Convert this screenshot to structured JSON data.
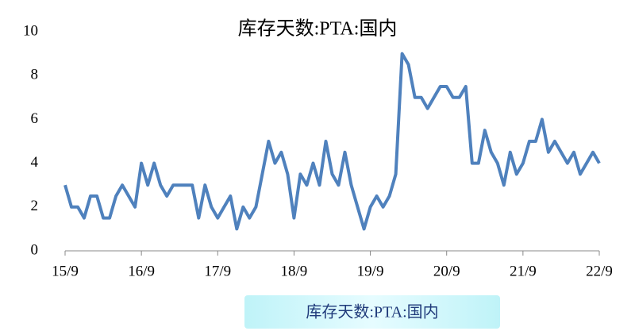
{
  "chart_data": {
    "type": "line",
    "title": "库存天数:PTA:国内",
    "categories": [
      "15/9",
      null,
      null,
      null,
      null,
      null,
      null,
      null,
      null,
      null,
      null,
      null,
      "16/9",
      null,
      null,
      null,
      null,
      null,
      null,
      null,
      null,
      null,
      null,
      null,
      "17/9",
      null,
      null,
      null,
      null,
      null,
      null,
      null,
      null,
      null,
      null,
      null,
      "18/9",
      null,
      null,
      null,
      null,
      null,
      null,
      null,
      null,
      null,
      null,
      null,
      "19/9",
      null,
      null,
      null,
      null,
      null,
      null,
      null,
      null,
      null,
      null,
      null,
      "20/9",
      null,
      null,
      null,
      null,
      null,
      null,
      null,
      null,
      null,
      null,
      null,
      "21/9",
      null,
      null,
      null,
      null,
      null,
      null,
      null,
      null,
      null,
      null,
      null,
      "22/9"
    ],
    "series": [
      {
        "name": "库存天数:PTA:国内",
        "color": "#4f81bd",
        "values": [
          3,
          2,
          2,
          1.5,
          2.5,
          2.5,
          1.5,
          1.5,
          2.5,
          3,
          2.5,
          2,
          4,
          3,
          4,
          3,
          2.5,
          3,
          3,
          3,
          3,
          1.5,
          3,
          2,
          1.5,
          2,
          2.5,
          1,
          2,
          1.5,
          2,
          3.5,
          5,
          4,
          4.5,
          3.5,
          1.5,
          3.5,
          3,
          4,
          3,
          5,
          3.5,
          3,
          4.5,
          3,
          2,
          1,
          2,
          2.5,
          2,
          2.5,
          3.5,
          9,
          8.5,
          7,
          7,
          6.5,
          7,
          7.5,
          7.5,
          7,
          7,
          7.5,
          4,
          4,
          5.5,
          4.5,
          4,
          3,
          4.5,
          3.5,
          4,
          5,
          5,
          6,
          4.5,
          5,
          4.5,
          4,
          4.5,
          3.5,
          4,
          4.5,
          4
        ]
      }
    ],
    "ylim": [
      0,
      10
    ],
    "yticks": [
      0,
      2,
      4,
      6,
      8,
      10
    ]
  }
}
